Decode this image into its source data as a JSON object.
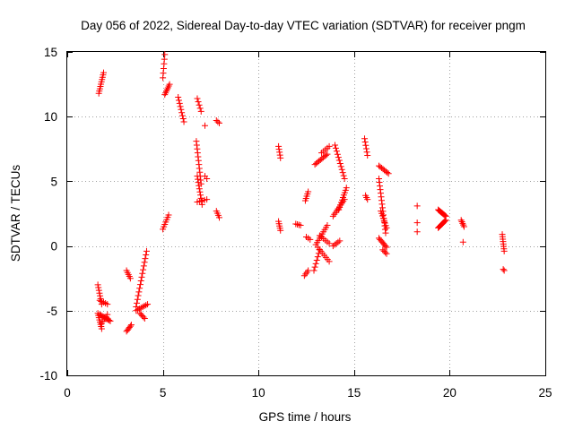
{
  "chart_data": {
    "type": "scatter",
    "title": "Day 056 of 2022, Sidereal Day-to-day VTEC variation (SDTVAR) for receiver pngm",
    "xlabel": "GPS time / hours",
    "ylabel": "SDTVAR / TECUs",
    "xlim": [
      0,
      25
    ],
    "ylim": [
      -10,
      15
    ],
    "xticks": [
      0,
      5,
      10,
      15,
      20,
      25
    ],
    "yticks": [
      -10,
      -5,
      0,
      5,
      10,
      15
    ],
    "xtick_labels": [
      "0",
      "5",
      "10",
      "15",
      "20",
      "25"
    ],
    "ytick_labels": [
      "-10",
      "-5",
      "0",
      "5",
      "10",
      "15"
    ],
    "grid": true,
    "marker": "+",
    "color": "#ff0000",
    "segments": [
      {
        "x0": 1.65,
        "x1": 1.9,
        "y0": 11.8,
        "y1": 13.4,
        "n": 10
      },
      {
        "x0": 1.6,
        "x1": 1.8,
        "y0": -3.0,
        "y1": -4.5,
        "n": 8
      },
      {
        "x0": 1.7,
        "x1": 2.1,
        "y0": -4.2,
        "y1": -4.5,
        "n": 5
      },
      {
        "x0": 1.6,
        "x1": 1.8,
        "y0": -5.2,
        "y1": -6.4,
        "n": 8
      },
      {
        "x0": 1.7,
        "x1": 2.25,
        "y0": -5.3,
        "y1": -5.8,
        "n": 10
      },
      {
        "x0": 1.8,
        "x1": 2.1,
        "y0": -6.0,
        "y1": -5.3,
        "n": 5
      },
      {
        "x0": 3.1,
        "x1": 3.3,
        "y0": -1.9,
        "y1": -2.5,
        "n": 5
      },
      {
        "x0": 3.1,
        "x1": 3.35,
        "y0": -6.6,
        "y1": -6.1,
        "n": 6
      },
      {
        "x0": 3.6,
        "x1": 4.15,
        "y0": -4.7,
        "y1": -0.4,
        "n": 16
      },
      {
        "x0": 3.6,
        "x1": 4.2,
        "y0": -5.0,
        "y1": -4.5,
        "n": 8
      },
      {
        "x0": 3.8,
        "x1": 4.05,
        "y0": -5.2,
        "y1": -5.6,
        "n": 5
      },
      {
        "x0": 5.0,
        "x1": 5.3,
        "y0": 1.3,
        "y1": 2.4,
        "n": 7
      },
      {
        "x0": 5.0,
        "x1": 5.1,
        "y0": 13.0,
        "y1": 14.8,
        "n": 6
      },
      {
        "x0": 5.1,
        "x1": 5.35,
        "y0": 11.7,
        "y1": 12.5,
        "n": 7
      },
      {
        "x0": 5.8,
        "x1": 6.1,
        "y0": 11.5,
        "y1": 9.6,
        "n": 9
      },
      {
        "x0": 6.8,
        "x1": 7.0,
        "y0": 11.4,
        "y1": 10.4,
        "n": 5
      },
      {
        "x0": 6.75,
        "x1": 7.0,
        "y0": 8.1,
        "y1": 4.8,
        "n": 12
      },
      {
        "x0": 6.8,
        "x1": 7.05,
        "y0": 5.4,
        "y1": 3.2,
        "n": 10
      },
      {
        "x0": 6.8,
        "x1": 7.3,
        "y0": 3.4,
        "y1": 3.6,
        "n": 5
      },
      {
        "x0": 7.2,
        "x1": 7.3,
        "y0": 5.4,
        "y1": 5.2,
        "n": 2
      },
      {
        "x0": 7.2,
        "x1": 7.2,
        "y0": 9.3,
        "y1": 9.3,
        "n": 1
      },
      {
        "x0": 7.8,
        "x1": 7.95,
        "y0": 9.7,
        "y1": 9.5,
        "n": 3
      },
      {
        "x0": 7.8,
        "x1": 7.95,
        "y0": 2.7,
        "y1": 2.2,
        "n": 4
      },
      {
        "x0": 11.05,
        "x1": 11.15,
        "y0": 7.7,
        "y1": 6.8,
        "n": 5
      },
      {
        "x0": 11.05,
        "x1": 11.15,
        "y0": 1.9,
        "y1": 1.2,
        "n": 5
      },
      {
        "x0": 11.95,
        "x1": 12.2,
        "y0": 1.7,
        "y1": 1.6,
        "n": 4
      },
      {
        "x0": 12.45,
        "x1": 12.6,
        "y0": 3.5,
        "y1": 4.2,
        "n": 5
      },
      {
        "x0": 12.4,
        "x1": 12.6,
        "y0": -2.3,
        "y1": -1.9,
        "n": 4
      },
      {
        "x0": 12.5,
        "x1": 12.7,
        "y0": 0.7,
        "y1": 0.5,
        "n": 3
      },
      {
        "x0": 12.95,
        "x1": 13.6,
        "y0": 6.3,
        "y1": 7.1,
        "n": 10
      },
      {
        "x0": 13.3,
        "x1": 13.7,
        "y0": 7.2,
        "y1": 7.7,
        "n": 5
      },
      {
        "x0": 12.9,
        "x1": 13.2,
        "y0": -1.9,
        "y1": -0.3,
        "n": 7
      },
      {
        "x0": 13.0,
        "x1": 13.6,
        "y0": 0.1,
        "y1": 1.6,
        "n": 10
      },
      {
        "x0": 13.1,
        "x1": 13.7,
        "y0": -0.1,
        "y1": -1.2,
        "n": 8
      },
      {
        "x0": 13.2,
        "x1": 13.7,
        "y0": 0.8,
        "y1": 0.2,
        "n": 6
      },
      {
        "x0": 13.9,
        "x1": 14.25,
        "y0": 0.0,
        "y1": 0.4,
        "n": 5
      },
      {
        "x0": 13.9,
        "x1": 14.5,
        "y0": 2.3,
        "y1": 3.6,
        "n": 10
      },
      {
        "x0": 14.0,
        "x1": 14.5,
        "y0": 7.8,
        "y1": 5.2,
        "n": 12
      },
      {
        "x0": 14.2,
        "x1": 14.6,
        "y0": 2.8,
        "y1": 4.5,
        "n": 10
      },
      {
        "x0": 15.55,
        "x1": 15.7,
        "y0": 8.3,
        "y1": 7.0,
        "n": 6
      },
      {
        "x0": 15.6,
        "x1": 15.7,
        "y0": 3.9,
        "y1": 3.6,
        "n": 3
      },
      {
        "x0": 16.3,
        "x1": 16.8,
        "y0": 6.2,
        "y1": 5.6,
        "n": 8
      },
      {
        "x0": 16.3,
        "x1": 16.65,
        "y0": 5.2,
        "y1": 1.0,
        "n": 16
      },
      {
        "x0": 16.4,
        "x1": 16.7,
        "y0": 2.7,
        "y1": 1.4,
        "n": 8
      },
      {
        "x0": 16.3,
        "x1": 16.7,
        "y0": 0.6,
        "y1": -0.1,
        "n": 8
      },
      {
        "x0": 16.5,
        "x1": 16.7,
        "y0": -0.3,
        "y1": -0.6,
        "n": 4
      },
      {
        "x0": 18.3,
        "x1": 18.3,
        "y0": 3.1,
        "y1": 3.1,
        "n": 1
      },
      {
        "x0": 18.3,
        "x1": 18.3,
        "y0": 1.8,
        "y1": 1.8,
        "n": 1
      },
      {
        "x0": 18.3,
        "x1": 18.3,
        "y0": 1.1,
        "y1": 1.1,
        "n": 1
      },
      {
        "x0": 19.4,
        "x1": 19.8,
        "y0": 2.8,
        "y1": 2.3,
        "n": 10
      },
      {
        "x0": 19.4,
        "x1": 19.8,
        "y0": 1.4,
        "y1": 2.0,
        "n": 10
      },
      {
        "x0": 20.6,
        "x1": 20.75,
        "y0": 2.0,
        "y1": 1.5,
        "n": 5
      },
      {
        "x0": 20.7,
        "x1": 20.7,
        "y0": 0.3,
        "y1": 0.3,
        "n": 1
      },
      {
        "x0": 22.75,
        "x1": 22.85,
        "y0": 0.9,
        "y1": -0.4,
        "n": 8
      },
      {
        "x0": 22.8,
        "x1": 22.85,
        "y0": -1.8,
        "y1": -1.9,
        "n": 2
      }
    ]
  }
}
